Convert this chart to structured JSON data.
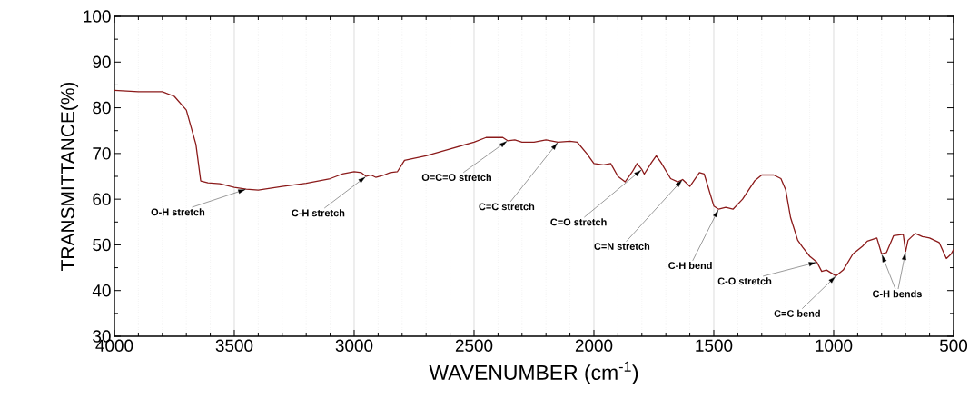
{
  "chart_data": {
    "type": "line",
    "xlabel": "WAVENUMBER (cm$^{-1}$)",
    "ylabel": "TRANSMITTANCE(%)",
    "xlim": [
      4000,
      500
    ],
    "ylim": [
      30,
      100
    ],
    "xticks": [
      4000,
      3500,
      3000,
      2500,
      2000,
      1500,
      1000,
      500
    ],
    "yticks": [
      30,
      40,
      50,
      60,
      70,
      80,
      90,
      100
    ],
    "grid": "x",
    "series": [
      {
        "color": "#8b1a1a",
        "x": [
          4000,
          3900,
          3800,
          3750,
          3700,
          3660,
          3640,
          3610,
          3560,
          3500,
          3450,
          3400,
          3300,
          3200,
          3100,
          3050,
          3000,
          2970,
          2950,
          2930,
          2910,
          2880,
          2850,
          2820,
          2790,
          2700,
          2600,
          2500,
          2450,
          2380,
          2360,
          2330,
          2300,
          2250,
          2200,
          2150,
          2100,
          2070,
          2030,
          2000,
          1960,
          1930,
          1900,
          1870,
          1840,
          1820,
          1800,
          1790,
          1760,
          1740,
          1720,
          1680,
          1650,
          1630,
          1600,
          1560,
          1540,
          1500,
          1480,
          1450,
          1420,
          1380,
          1330,
          1300,
          1250,
          1220,
          1200,
          1180,
          1150,
          1130,
          1100,
          1070,
          1050,
          1030,
          990,
          960,
          920,
          880,
          860,
          820,
          800,
          780,
          750,
          710,
          700,
          690,
          660,
          630,
          600,
          560,
          530,
          510,
          500
        ],
        "values": [
          83.8,
          83.5,
          83.5,
          82.5,
          79.5,
          72,
          64,
          63.6,
          63.4,
          62.6,
          62.2,
          62,
          62.8,
          63.5,
          64.5,
          65.5,
          66,
          65.8,
          65,
          65.3,
          64.8,
          65.2,
          65.8,
          66,
          68.5,
          69.5,
          71,
          72.5,
          73.5,
          73.5,
          72.8,
          73,
          72.5,
          72.5,
          73,
          72.5,
          72.7,
          72.5,
          70,
          67.8,
          67.5,
          67.8,
          65,
          63.8,
          66,
          67.8,
          66.5,
          65.5,
          68,
          69.5,
          68,
          64.5,
          63.8,
          64.3,
          62.8,
          65.8,
          65.5,
          58.5,
          57.8,
          58.2,
          57.8,
          60,
          64,
          65.3,
          65.3,
          64.5,
          62,
          56,
          51,
          49.5,
          47.5,
          46.2,
          44.2,
          44.5,
          43.2,
          44.5,
          48,
          49.7,
          50.8,
          51.5,
          48,
          48.3,
          52,
          52.3,
          48.5,
          51,
          52.5,
          51.8,
          51.5,
          50.5,
          47,
          48,
          49
        ]
      }
    ],
    "annotations": [
      {
        "text": "O-H stretch",
        "x": 3450,
        "y": 62.2
      },
      {
        "text": "C-H stretch",
        "x": 2950,
        "y": 65
      },
      {
        "text": "O=C=O stretch",
        "x": 2360,
        "y": 72.8
      },
      {
        "text": "C=C stretch",
        "x": 2150,
        "y": 72.5
      },
      {
        "text": "C=O stretch",
        "x": 1800,
        "y": 66.5
      },
      {
        "text": "C=N stretch",
        "x": 1630,
        "y": 64.3
      },
      {
        "text": "C-H bend",
        "x": 1480,
        "y": 57.8
      },
      {
        "text": "C-O stretch",
        "x": 1070,
        "y": 46.2
      },
      {
        "text": "C=C bend",
        "x": 990,
        "y": 43.2
      },
      {
        "text": "C-H bends",
        "x": 800,
        "y": 48
      }
    ]
  }
}
